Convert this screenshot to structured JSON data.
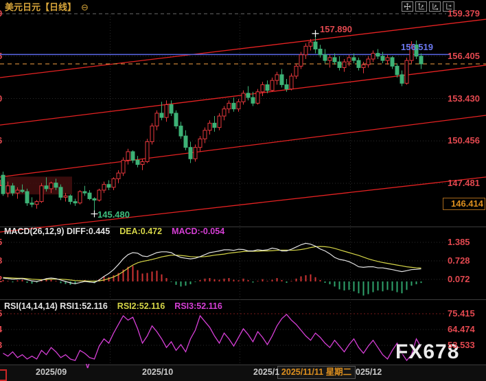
{
  "header": {
    "title": "美元日元【日线】",
    "collapse_icon": "⊖"
  },
  "toolbar": {
    "icons": [
      "pan-icon",
      "y-axis-scale-icon",
      "x-axis-scale-icon",
      "axis-shift-icon"
    ]
  },
  "main_chart": {
    "y_axis_labels": [
      "159.379",
      "156.405",
      "153.430",
      "150.456",
      "147.481"
    ],
    "marked_price_label": "146.414",
    "blue_level_label": "156.519",
    "high_annotation": "157.890",
    "low_annotation": "145.480",
    "left_edge_digits": [
      "9",
      "5",
      "0",
      "6",
      "1"
    ]
  },
  "macd_panel": {
    "param_label": "MACD(26,12,9) DIFF:0.445",
    "dea_label": "DEA:0.472",
    "macd_label": "MACD:-0.054",
    "axis_labels": [
      "1.385",
      "0.728",
      "0.072"
    ],
    "left_edge_digits": [
      "5",
      "8",
      "2"
    ]
  },
  "rsi_panel": {
    "param_label": "RSI(14,14,14) RSI1:52.116",
    "rsi2_label": "RSI2:52.116",
    "rsi3_label": "RSI3:52.116",
    "axis_labels": [
      "75.415",
      "64.474",
      "53.533"
    ],
    "left_edge_digits": [
      "5",
      "4",
      "3"
    ]
  },
  "x_axis": {
    "labels": [
      "2025/09",
      "2025/10",
      "2025/1",
      "025/12"
    ],
    "highlight_label": "2025/11/11 星期二",
    "marker_icon": "∨"
  },
  "watermark": "FX678",
  "colors": {
    "up_candle": "#e8383d",
    "down_candle": "#3db276",
    "channel_line": "#e62222",
    "blue_line": "#5b68e8",
    "orange_line": "#dd8f3c",
    "axis_red": "#e2484f",
    "diff_white": "#e4e4e4",
    "dea_yellow": "#d6d648",
    "macd_magenta": "#d63fd6",
    "hist_pos": "#cf3333",
    "hist_neg": "#2fa36b",
    "zone_fill": "#420e0e",
    "grid": "#2e2e2e",
    "grid_top": "#6a6a6a",
    "divider": "#3c3c3c",
    "rsi_line": "#d63fd6"
  },
  "chart_data": [
    {
      "type": "candlestick",
      "symbol": "USD/JPY 美元日元",
      "timeframe": "日线",
      "y_axis_ticks": [
        159.379,
        156.405,
        153.43,
        150.456,
        147.481
      ],
      "marked_price": 146.414,
      "levels": {
        "blue_line": 156.519,
        "dashed_close": 155.86
      },
      "annotations": {
        "high": {
          "label": "157.890",
          "index": 65,
          "price": 157.89
        },
        "low": {
          "label": "145.480",
          "index": 19,
          "price": 145.48
        }
      },
      "channel_lines": [
        {
          "p_left": 154.9,
          "p_right": 158.99
        },
        {
          "p_left": 151.57,
          "p_right": 155.77
        },
        {
          "p_left": 147.92,
          "p_right": 152.25
        },
        {
          "p_left": 144.06,
          "p_right": 147.92
        }
      ],
      "highlight_zone": {
        "start_index": 1,
        "end_index": 14,
        "price_top": 147.95,
        "price_bottom": 146.7
      },
      "month_start_indices": [
        23,
        50,
        73
      ],
      "months": [
        "2025/09",
        "2025/10",
        "2025/11",
        "2025/12"
      ],
      "highlight_date": "2025/11/11 星期二",
      "candles": [
        [
          148.05,
          148.3,
          146.6,
          146.75
        ],
        [
          146.8,
          147.6,
          146.5,
          147.3
        ],
        [
          147.3,
          147.5,
          146.6,
          146.8
        ],
        [
          146.8,
          147.2,
          146.4,
          147.0
        ],
        [
          147.0,
          147.4,
          146.8,
          146.9
        ],
        [
          146.9,
          147.1,
          145.9,
          146.1
        ],
        [
          146.1,
          146.5,
          145.8,
          146.0
        ],
        [
          146.0,
          146.3,
          145.7,
          146.2
        ],
        [
          146.2,
          147.5,
          146.1,
          147.3
        ],
        [
          147.3,
          147.9,
          146.9,
          147.1
        ],
        [
          147.1,
          147.6,
          146.8,
          147.5
        ],
        [
          147.5,
          147.8,
          147.0,
          147.2
        ],
        [
          147.2,
          147.4,
          146.3,
          146.5
        ],
        [
          146.5,
          146.8,
          146.2,
          146.6
        ],
        [
          146.6,
          146.7,
          146.0,
          146.2
        ],
        [
          146.2,
          146.4,
          145.9,
          146.1
        ],
        [
          146.1,
          147.0,
          146.0,
          146.9
        ],
        [
          146.9,
          147.3,
          146.6,
          146.8
        ],
        [
          146.8,
          147.0,
          146.3,
          146.4
        ],
        [
          146.4,
          146.5,
          145.48,
          146.3
        ],
        [
          146.3,
          147.1,
          146.2,
          147.0
        ],
        [
          147.0,
          147.6,
          146.8,
          147.4
        ],
        [
          147.4,
          147.7,
          147.0,
          147.2
        ],
        [
          147.2,
          147.9,
          147.0,
          147.8
        ],
        [
          147.8,
          148.4,
          147.5,
          148.2
        ],
        [
          148.2,
          149.3,
          148.0,
          149.1
        ],
        [
          149.1,
          149.9,
          148.8,
          149.7
        ],
        [
          149.7,
          149.8,
          148.9,
          149.1
        ],
        [
          149.1,
          149.4,
          148.6,
          148.8
        ],
        [
          148.8,
          149.2,
          148.4,
          149.0
        ],
        [
          149.0,
          150.6,
          148.9,
          150.4
        ],
        [
          150.4,
          151.7,
          150.2,
          151.5
        ],
        [
          151.5,
          152.6,
          151.2,
          152.4
        ],
        [
          152.4,
          153.2,
          151.9,
          152.1
        ],
        [
          152.1,
          153.3,
          151.8,
          153.0
        ],
        [
          153.0,
          153.3,
          152.2,
          152.4
        ],
        [
          152.4,
          152.6,
          151.3,
          151.5
        ],
        [
          151.5,
          151.8,
          150.6,
          150.8
        ],
        [
          150.8,
          151.2,
          149.8,
          150.0
        ],
        [
          150.0,
          150.4,
          148.9,
          149.2
        ],
        [
          149.2,
          150.2,
          149.0,
          150.0
        ],
        [
          150.0,
          150.8,
          149.7,
          150.6
        ],
        [
          150.6,
          151.4,
          150.3,
          151.2
        ],
        [
          151.2,
          151.9,
          150.9,
          151.7
        ],
        [
          151.7,
          152.2,
          151.1,
          151.4
        ],
        [
          151.4,
          152.4,
          151.2,
          152.2
        ],
        [
          152.2,
          152.9,
          151.9,
          152.7
        ],
        [
          152.7,
          153.3,
          152.4,
          153.1
        ],
        [
          153.1,
          153.5,
          152.5,
          152.7
        ],
        [
          152.7,
          153.4,
          152.5,
          153.2
        ],
        [
          153.2,
          154.0,
          153.0,
          153.8
        ],
        [
          153.8,
          154.3,
          153.3,
          153.5
        ],
        [
          153.5,
          153.9,
          152.9,
          153.1
        ],
        [
          153.1,
          154.1,
          153.0,
          153.9
        ],
        [
          153.9,
          154.6,
          153.6,
          154.4
        ],
        [
          154.4,
          154.7,
          153.8,
          154.0
        ],
        [
          154.0,
          154.9,
          153.9,
          154.7
        ],
        [
          154.7,
          155.3,
          154.4,
          155.1
        ],
        [
          155.1,
          155.5,
          154.2,
          154.4
        ],
        [
          154.4,
          154.8,
          153.9,
          154.1
        ],
        [
          154.1,
          155.2,
          154.0,
          155.0
        ],
        [
          155.0,
          155.9,
          154.8,
          155.7
        ],
        [
          155.7,
          156.7,
          155.5,
          156.5
        ],
        [
          156.5,
          157.3,
          156.2,
          157.1
        ],
        [
          157.1,
          157.6,
          156.8,
          157.4
        ],
        [
          157.4,
          157.89,
          156.6,
          156.9
        ],
        [
          156.9,
          157.2,
          156.3,
          156.5
        ],
        [
          156.5,
          156.9,
          155.9,
          156.1
        ],
        [
          156.1,
          156.5,
          155.6,
          156.3
        ],
        [
          156.3,
          156.6,
          155.8,
          156.0
        ],
        [
          156.0,
          156.4,
          155.4,
          155.6
        ],
        [
          155.6,
          156.2,
          155.3,
          156.0
        ],
        [
          156.0,
          156.5,
          155.7,
          156.3
        ],
        [
          156.3,
          156.6,
          155.9,
          156.1
        ],
        [
          156.1,
          156.3,
          155.4,
          155.6
        ],
        [
          155.6,
          156.0,
          155.2,
          155.8
        ],
        [
          155.8,
          156.4,
          155.6,
          156.2
        ],
        [
          156.2,
          156.8,
          156.0,
          156.6
        ],
        [
          156.6,
          156.9,
          156.2,
          156.4
        ],
        [
          156.4,
          156.7,
          155.9,
          156.1
        ],
        [
          156.1,
          156.5,
          155.8,
          156.3
        ],
        [
          156.3,
          156.4,
          155.5,
          155.7
        ],
        [
          155.7,
          155.9,
          154.9,
          155.1
        ],
        [
          155.1,
          155.4,
          154.3,
          154.5
        ],
        [
          154.5,
          156.3,
          154.4,
          156.1
        ],
        [
          156.1,
          157.45,
          155.9,
          157.2
        ],
        [
          157.2,
          157.5,
          156.2,
          156.4
        ],
        [
          156.4,
          156.6,
          155.5,
          155.86
        ]
      ]
    },
    {
      "type": "macd",
      "params": [
        26,
        12,
        9
      ],
      "diff": 0.445,
      "dea": 0.472,
      "macd": -0.054,
      "y_axis_ticks": [
        1.385,
        0.728,
        0.072
      ],
      "hist": [
        0.05,
        0.02,
        -0.03,
        0.04,
        0.06,
        -0.05,
        -0.08,
        -0.04,
        0.08,
        0.1,
        0.06,
        0.02,
        -0.06,
        -0.09,
        -0.12,
        -0.1,
        0.02,
        0.05,
        -0.04,
        -0.06,
        0.08,
        0.18,
        0.15,
        0.22,
        0.3,
        0.42,
        0.52,
        0.55,
        0.4,
        0.28,
        0.3,
        0.35,
        0.38,
        0.25,
        0.12,
        -0.02,
        -0.12,
        -0.18,
        -0.15,
        -0.1,
        -0.02,
        0.05,
        0.1,
        0.12,
        0.08,
        0.06,
        0.1,
        0.12,
        0.06,
        0.04,
        0.1,
        0.05,
        -0.04,
        0.02,
        0.08,
        0.02,
        0.06,
        0.12,
        0.05,
        -0.05,
        0.02,
        0.1,
        0.18,
        0.22,
        0.25,
        0.15,
        0.05,
        -0.05,
        -0.1,
        -0.18,
        -0.28,
        -0.32,
        -0.3,
        -0.35,
        -0.42,
        -0.5,
        -0.45,
        -0.38,
        -0.32,
        -0.35,
        -0.3,
        -0.33,
        -0.38,
        -0.42,
        -0.3,
        -0.15,
        -0.1,
        -0.054
      ],
      "diff_series": [
        0.12,
        0.1,
        0.08,
        0.09,
        0.1,
        0.06,
        0.02,
        0.0,
        0.04,
        0.1,
        0.12,
        0.1,
        0.05,
        0.0,
        -0.05,
        -0.08,
        -0.04,
        0.0,
        -0.02,
        -0.04,
        0.05,
        0.18,
        0.28,
        0.42,
        0.6,
        0.8,
        0.95,
        1.02,
        1.0,
        0.9,
        0.88,
        0.95,
        1.02,
        1.05,
        1.05,
        1.02,
        0.92,
        0.85,
        0.82,
        0.8,
        0.82,
        0.88,
        0.95,
        1.02,
        1.05,
        1.08,
        1.12,
        1.12,
        1.1,
        1.14,
        1.13,
        1.08,
        1.08,
        1.12,
        1.1,
        1.12,
        1.18,
        1.15,
        1.08,
        1.08,
        1.14,
        1.22,
        1.3,
        1.35,
        1.32,
        1.25,
        1.15,
        1.08,
        0.98,
        0.85,
        0.78,
        0.75,
        0.7,
        0.62,
        0.52,
        0.5,
        0.52,
        0.52,
        0.48,
        0.48,
        0.45,
        0.42,
        0.38,
        0.35,
        0.38,
        0.42,
        0.43,
        0.445
      ],
      "dea_series": [
        0.14,
        0.13,
        0.12,
        0.11,
        0.11,
        0.1,
        0.08,
        0.07,
        0.06,
        0.07,
        0.08,
        0.08,
        0.08,
        0.07,
        0.05,
        0.03,
        0.02,
        0.02,
        0.01,
        0.01,
        0.02,
        0.05,
        0.1,
        0.16,
        0.24,
        0.35,
        0.47,
        0.58,
        0.66,
        0.71,
        0.74,
        0.78,
        0.82,
        0.87,
        0.9,
        0.93,
        0.93,
        0.92,
        0.9,
        0.88,
        0.87,
        0.87,
        0.88,
        0.9,
        0.93,
        0.95,
        0.97,
        1.0,
        1.02,
        1.04,
        1.06,
        1.07,
        1.07,
        1.07,
        1.08,
        1.08,
        1.09,
        1.1,
        1.11,
        1.11,
        1.1,
        1.11,
        1.13,
        1.16,
        1.2,
        1.23,
        1.24,
        1.23,
        1.21,
        1.17,
        1.12,
        1.07,
        1.02,
        0.97,
        0.92,
        0.86,
        0.8,
        0.75,
        0.71,
        0.67,
        0.64,
        0.61,
        0.58,
        0.55,
        0.52,
        0.5,
        0.48,
        0.472
      ]
    },
    {
      "type": "line",
      "name": "RSI",
      "params": [
        14,
        14,
        14
      ],
      "rsi1": 52.116,
      "rsi2": 52.116,
      "rsi3": 52.116,
      "y_axis_ticks": [
        75.415,
        64.474,
        53.533
      ],
      "values": [
        48,
        46,
        49,
        45,
        47,
        44,
        46,
        44,
        50,
        47,
        52,
        49,
        45,
        47,
        44,
        43,
        50,
        48,
        45,
        44,
        53,
        58,
        55,
        62,
        68,
        74,
        71,
        73,
        65,
        55,
        60,
        67,
        63,
        58,
        52,
        56,
        50,
        54,
        49,
        58,
        64,
        74,
        70,
        66,
        60,
        55,
        62,
        58,
        53,
        59,
        65,
        61,
        56,
        63,
        59,
        54,
        60,
        67,
        72,
        75,
        71,
        68,
        64,
        60,
        57,
        62,
        59,
        55,
        52,
        57,
        53,
        49,
        54,
        58,
        52,
        48,
        53,
        57,
        52,
        47,
        44,
        50,
        55,
        48,
        43,
        47,
        58,
        52.116
      ]
    }
  ]
}
